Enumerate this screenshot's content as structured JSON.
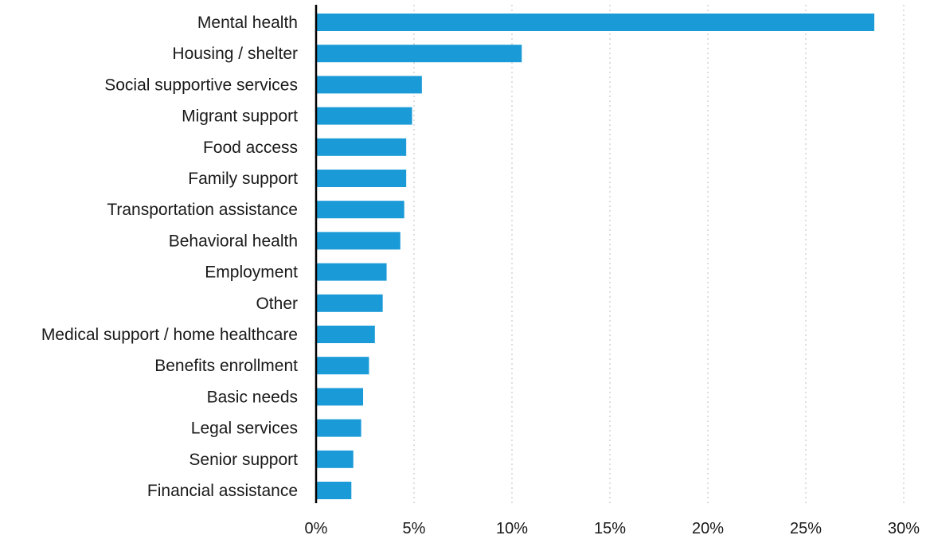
{
  "chart_data": {
    "type": "bar",
    "orientation": "horizontal",
    "title": "",
    "xlabel": "",
    "ylabel": "",
    "categories": [
      "Mental health",
      "Housing / shelter",
      "Social supportive services",
      "Migrant support",
      "Food access",
      "Family support",
      "Transportation assistance",
      "Behavioral health",
      "Employment",
      "Other",
      "Medical support / home healthcare",
      "Benefits enrollment",
      "Basic needs",
      "Legal services",
      "Senior support",
      "Financial assistance"
    ],
    "values": [
      28.5,
      10.5,
      5.4,
      4.9,
      4.6,
      4.6,
      4.5,
      4.3,
      3.6,
      3.4,
      3.0,
      2.7,
      2.4,
      2.3,
      1.9,
      1.8
    ],
    "xlim": [
      0,
      30
    ],
    "x_ticks": [
      0,
      5,
      10,
      15,
      20,
      25,
      30
    ],
    "x_tick_labels": [
      "0%",
      "5%",
      "10%",
      "15%",
      "20%",
      "25%",
      "30%"
    ],
    "grid": "vertical-dotted",
    "bar_color": "#1a9ad7",
    "axis_color": "#000000"
  }
}
